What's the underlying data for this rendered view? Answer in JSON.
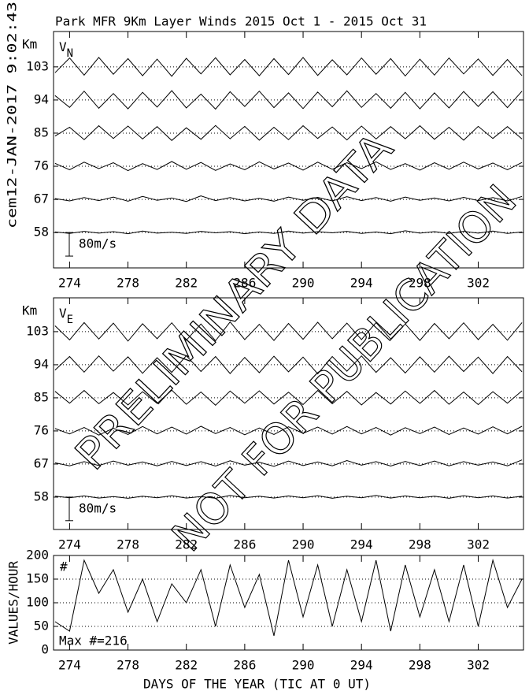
{
  "page": {
    "timestamp": "cem12-JAN-2017  9:02:43",
    "watermark": [
      "PRELIMINARY DATA",
      "NOT FOR PUBLICATION"
    ]
  },
  "chart_data": [
    {
      "type": "traces",
      "title": "Park MFR 9Km Layer Winds 2015 Oct  1 - 2015 Oct 31",
      "panel_label": {
        "main": "V",
        "sub": "N"
      },
      "y_unit": "Km",
      "x": [
        273,
        274,
        275,
        276,
        277,
        278,
        279,
        280,
        281,
        282,
        283,
        284,
        285,
        286,
        287,
        288,
        289,
        290,
        291,
        292,
        293,
        294,
        295,
        296,
        297,
        298,
        299,
        300,
        301,
        302,
        303,
        304,
        305
      ],
      "xlim": [
        272.9,
        305.1
      ],
      "xticks": [
        274,
        278,
        282,
        286,
        290,
        294,
        298,
        302
      ],
      "ylim": [
        48.4,
        112.6
      ],
      "yticks": [
        58,
        67,
        76,
        85,
        94,
        103
      ],
      "scale_bar": {
        "value": 80,
        "label": "80m/s",
        "span": [
          51.6,
          58
        ]
      },
      "series": [
        {
          "color": "#000000",
          "values": [
            2,
            -3,
            4,
            -2,
            3,
            -4,
            5,
            -2,
            1,
            -3,
            4,
            -1,
            3,
            -4,
            2,
            -3,
            5,
            -2,
            3,
            -1,
            4,
            -3,
            2,
            -4,
            6,
            -2,
            3,
            -3,
            4,
            -2,
            5,
            -3,
            2
          ]
        },
        {
          "color": "#000000",
          "values": [
            3,
            -5,
            6,
            -4,
            8,
            -6,
            10,
            -3,
            5,
            -7,
            12,
            -4,
            6,
            -5,
            4,
            -6,
            8,
            -3,
            7,
            -5,
            9,
            -4,
            6,
            -6,
            8,
            -3,
            5,
            -5,
            7,
            -4,
            6,
            -5,
            10
          ]
        },
        {
          "color": "#000000",
          "values": [
            10,
            -12,
            14,
            -8,
            12,
            -15,
            9,
            -11,
            16,
            -10,
            13,
            -14,
            8,
            -12,
            15,
            -9,
            11,
            -13,
            14,
            -10,
            12,
            -8,
            15,
            -11,
            9,
            -13,
            12,
            -10,
            14,
            -9,
            11,
            -12,
            13
          ]
        },
        {
          "color": "#000000",
          "values": [
            -10,
            20,
            -22,
            25,
            -18,
            24,
            -20,
            22,
            -25,
            18,
            -21,
            26,
            -19,
            23,
            -24,
            20,
            -22,
            25,
            -18,
            21,
            -23,
            24,
            -20,
            22,
            -19,
            25,
            -21,
            20,
            -24,
            23,
            -18,
            22,
            -20
          ]
        },
        {
          "color": "#000000",
          "values": [
            15,
            -25,
            30,
            -28,
            22,
            -30,
            26,
            -24,
            32,
            -27,
            20,
            -31,
            28,
            -22,
            30,
            -26,
            24,
            -29,
            27,
            -23,
            31,
            -25,
            22,
            -28,
            26,
            -30,
            24,
            -27,
            29,
            -22,
            28,
            -26,
            30
          ]
        },
        {
          "color": "#000000",
          "values": [
            -20,
            30,
            -28,
            32,
            -25,
            28,
            -30,
            26,
            -32,
            29,
            -24,
            31,
            -27,
            25,
            -30,
            28,
            -26,
            32,
            -29,
            24,
            -27,
            30,
            -25,
            28,
            -31,
            26,
            -28,
            30,
            -24,
            27,
            -29,
            25,
            -30
          ]
        }
      ]
    },
    {
      "type": "traces",
      "panel_label": {
        "main": "V",
        "sub": "E"
      },
      "y_unit": "Km",
      "x": [
        273,
        274,
        275,
        276,
        277,
        278,
        279,
        280,
        281,
        282,
        283,
        284,
        285,
        286,
        287,
        288,
        289,
        290,
        291,
        292,
        293,
        294,
        295,
        296,
        297,
        298,
        299,
        300,
        301,
        302,
        303,
        304,
        305
      ],
      "xlim": [
        272.9,
        305.1
      ],
      "xticks": [
        274,
        278,
        282,
        286,
        290,
        294,
        298,
        302
      ],
      "ylim": [
        49.2,
        112.2
      ],
      "yticks": [
        58,
        67,
        76,
        85,
        94,
        103
      ],
      "scale_bar": {
        "value": 80,
        "label": "80m/s",
        "span": [
          51.6,
          58
        ]
      },
      "series": [
        {
          "color": "#000000",
          "values": [
            3,
            -2,
            4,
            -3,
            2,
            -4,
            3,
            -2,
            5,
            -3,
            2,
            -4,
            6,
            -2,
            3,
            -3,
            4,
            -2,
            5,
            -4,
            3,
            -2,
            6,
            -3,
            4,
            -2,
            3,
            -4,
            5,
            -2,
            4,
            -3,
            3
          ]
        },
        {
          "color": "#000000",
          "values": [
            4,
            -6,
            8,
            -5,
            10,
            -4,
            7,
            -6,
            9,
            -5,
            8,
            -7,
            11,
            -4,
            6,
            -8,
            10,
            -5,
            7,
            -6,
            12,
            -4,
            8,
            -7,
            9,
            -5,
            10,
            -6,
            8,
            -4,
            7,
            -6,
            14
          ]
        },
        {
          "color": "#000000",
          "values": [
            8,
            -10,
            12,
            -14,
            9,
            -12,
            15,
            -10,
            13,
            -11,
            16,
            -9,
            12,
            -13,
            10,
            -12,
            14,
            -8,
            13,
            -11,
            15,
            -10,
            12,
            -14,
            11,
            -9,
            13,
            -12,
            10,
            -11,
            14,
            -10,
            16
          ]
        },
        {
          "color": "#000000",
          "values": [
            22,
            -18,
            25,
            -20,
            18,
            -24,
            21,
            -19,
            26,
            -22,
            20,
            -25,
            23,
            -18,
            24,
            -21,
            19,
            -23,
            25,
            -20,
            22,
            -24,
            18,
            -21,
            23,
            -19,
            25,
            -22,
            20,
            -23,
            21,
            -18,
            24
          ]
        },
        {
          "color": "#000000",
          "values": [
            -18,
            28,
            -25,
            30,
            -22,
            27,
            -29,
            24,
            -26,
            31,
            -23,
            28,
            -30,
            25,
            -27,
            29,
            -24,
            26,
            -31,
            28,
            -22,
            30,
            -26,
            24,
            -28,
            27,
            -25,
            29,
            -23,
            26,
            -30,
            28,
            -24
          ]
        },
        {
          "color": "#000000",
          "values": [
            20,
            -28,
            31,
            -25,
            29,
            -32,
            27,
            -24,
            30,
            -29,
            26,
            -31,
            33,
            -27,
            25,
            -30,
            28,
            -26,
            32,
            -24,
            29,
            -27,
            31,
            -25,
            26,
            -30,
            28,
            -24,
            30,
            -27,
            25,
            -29,
            31
          ]
        }
      ]
    },
    {
      "type": "line",
      "y_label": "VALUES/HOUR",
      "x_label": "DAYS OF THE YEAR (TIC AT 0 UT)",
      "annotations": [
        "#",
        "Max #=216"
      ],
      "x": [
        273,
        274,
        275,
        276,
        277,
        278,
        279,
        280,
        281,
        282,
        283,
        284,
        285,
        286,
        287,
        288,
        289,
        290,
        291,
        292,
        293,
        294,
        295,
        296,
        297,
        298,
        299,
        300,
        301,
        302,
        303,
        304,
        305
      ],
      "xlim": [
        272.9,
        305.1
      ],
      "xticks": [
        274,
        278,
        282,
        286,
        290,
        294,
        298,
        302
      ],
      "ylim": [
        0,
        200
      ],
      "yticks": [
        0,
        50,
        100,
        150,
        200
      ],
      "grid": true,
      "series": [
        {
          "color": "#000000",
          "values": [
            60,
            40,
            190,
            120,
            170,
            80,
            150,
            60,
            140,
            100,
            170,
            50,
            180,
            90,
            160,
            30,
            190,
            70,
            180,
            50,
            170,
            60,
            190,
            40,
            180,
            70,
            170,
            60,
            180,
            50,
            190,
            90,
            150
          ]
        }
      ]
    }
  ]
}
